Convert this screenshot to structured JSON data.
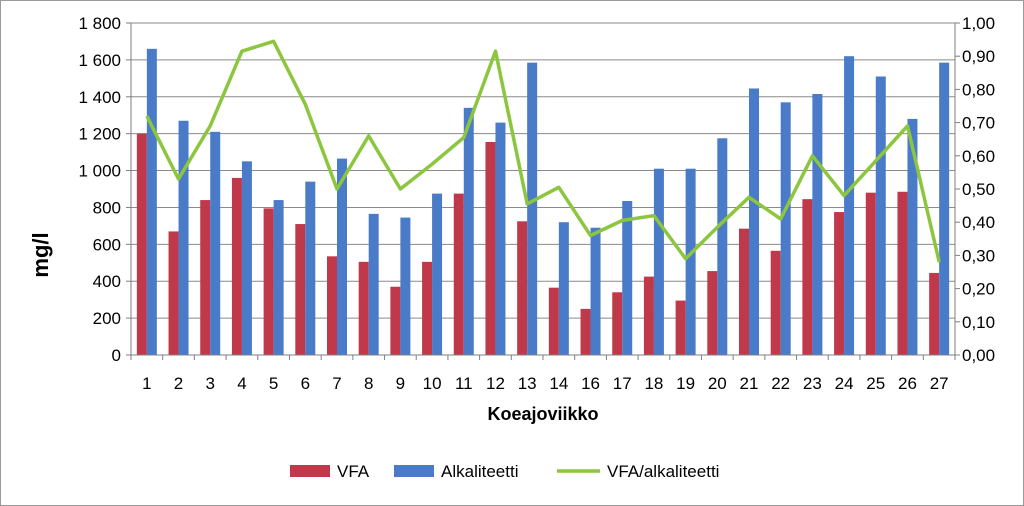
{
  "chart_data": {
    "type": "bar",
    "categories": [
      "1",
      "2",
      "3",
      "4",
      "5",
      "6",
      "7",
      "8",
      "9",
      "10",
      "11",
      "12",
      "13",
      "14",
      "16",
      "17",
      "18",
      "19",
      "20",
      "21",
      "22",
      "23",
      "24",
      "25",
      "26",
      "27"
    ],
    "series": [
      {
        "name": "VFA",
        "type": "bar",
        "axis": "left",
        "color": "#C0394B",
        "values": [
          1200,
          670,
          840,
          960,
          795,
          710,
          535,
          505,
          370,
          505,
          875,
          1155,
          725,
          365,
          250,
          340,
          425,
          295,
          455,
          685,
          565,
          845,
          775,
          880,
          885,
          445
        ]
      },
      {
        "name": "Alkaliteetti",
        "type": "bar",
        "axis": "left",
        "color": "#4A7BC8",
        "values": [
          1660,
          1270,
          1210,
          1050,
          840,
          940,
          1065,
          765,
          745,
          875,
          1340,
          1260,
          1585,
          720,
          690,
          835,
          1010,
          1010,
          1175,
          1445,
          1370,
          1415,
          1620,
          1510,
          1280,
          1585
        ]
      },
      {
        "name": "VFA/alkaliteetti",
        "type": "line",
        "axis": "right",
        "color": "#8CC63F",
        "values": [
          0.72,
          0.53,
          0.69,
          0.915,
          0.945,
          0.755,
          0.5,
          0.66,
          0.5,
          0.575,
          0.655,
          0.915,
          0.455,
          0.505,
          0.36,
          0.405,
          0.42,
          0.29,
          0.385,
          0.475,
          0.41,
          0.6,
          0.48,
          0.585,
          0.69,
          0.28
        ]
      }
    ],
    "y_left": {
      "label": "mg/l",
      "min": 0,
      "max": 1800,
      "step": 200,
      "tick_labels": [
        "0",
        "200",
        "400",
        "600",
        "800",
        "1 000",
        "1 200",
        "1 400",
        "1 600",
        "1 800"
      ]
    },
    "y_right": {
      "label": "",
      "min": 0,
      "max": 1.0,
      "step": 0.1,
      "tick_labels": [
        "0,00",
        "0,10",
        "0,20",
        "0,30",
        "0,40",
        "0,50",
        "0,60",
        "0,70",
        "0,80",
        "0,90",
        "1,00"
      ]
    },
    "xlabel": "Koeajoviikko",
    "title": "",
    "grid": true,
    "legend": "bottom"
  }
}
